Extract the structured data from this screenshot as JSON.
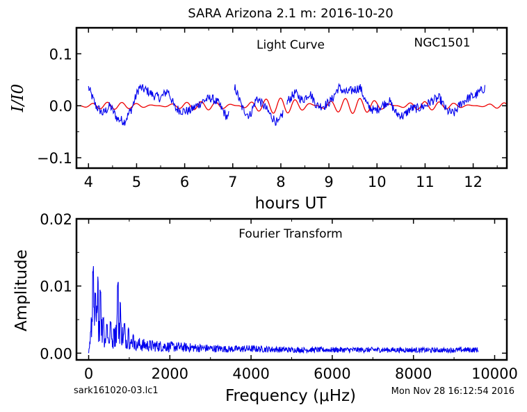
{
  "header": {
    "title": "SARA Arizona 2.1 m:  2016-10-20"
  },
  "footer": {
    "filename": "sark161020-03.lc1",
    "timestamp": "Mon Nov 28 16:12:54 2016"
  },
  "colors": {
    "data": "#0000ee",
    "model": "#ee0000",
    "axes": "#000000"
  },
  "chart_data": [
    {
      "type": "line",
      "title": "Light Curve",
      "object_label": "NGC1501",
      "xlabel": "hours UT",
      "ylabel": "I/I0",
      "xlim": [
        3.75,
        12.7
      ],
      "ylim": [
        -0.12,
        0.15
      ],
      "xticks": [
        "4",
        "5",
        "6",
        "7",
        "8",
        "9",
        "10",
        "11",
        "12"
      ],
      "xtick_values": [
        4,
        5,
        6,
        7,
        8,
        9,
        10,
        11,
        12
      ],
      "yticks": [
        "0.1",
        "0.0",
        "−0.1"
      ],
      "ytick_values": [
        0.1,
        0.0,
        -0.1
      ],
      "grid": false,
      "series": [
        {
          "color": "#0000ee",
          "x_start": 4.0,
          "x_end": 12.25,
          "gaps": [
            [
              6.92,
              7.03
            ],
            [
              8.05,
              8.12
            ]
          ],
          "anchors": [
            [
              4.0,
              0.035
            ],
            [
              4.15,
              0.0
            ],
            [
              4.3,
              -0.015
            ],
            [
              4.45,
              0.0
            ],
            [
              4.6,
              -0.025
            ],
            [
              4.75,
              -0.03
            ],
            [
              4.9,
              -0.005
            ],
            [
              5.05,
              0.035
            ],
            [
              5.2,
              0.03
            ],
            [
              5.35,
              0.02
            ],
            [
              5.5,
              0.015
            ],
            [
              5.65,
              0.03
            ],
            [
              5.8,
              -0.005
            ],
            [
              5.95,
              -0.01
            ],
            [
              6.1,
              -0.01
            ],
            [
              6.25,
              0.0
            ],
            [
              6.4,
              0.01
            ],
            [
              6.55,
              0.015
            ],
            [
              6.7,
              0.005
            ],
            [
              6.9,
              -0.025
            ],
            [
              7.05,
              0.035
            ],
            [
              7.2,
              -0.005
            ],
            [
              7.35,
              -0.02
            ],
            [
              7.5,
              0.015
            ],
            [
              7.65,
              0.0
            ],
            [
              7.8,
              -0.02
            ],
            [
              7.95,
              -0.035
            ],
            [
              8.15,
              0.01
            ],
            [
              8.3,
              0.025
            ],
            [
              8.45,
              0.01
            ],
            [
              8.6,
              0.025
            ],
            [
              8.75,
              0.0
            ],
            [
              8.9,
              0.0
            ],
            [
              9.05,
              0.01
            ],
            [
              9.2,
              0.035
            ],
            [
              9.35,
              0.025
            ],
            [
              9.5,
              0.03
            ],
            [
              9.65,
              0.035
            ],
            [
              9.8,
              0.0
            ],
            [
              9.95,
              -0.01
            ],
            [
              10.1,
              0.0
            ],
            [
              10.25,
              0.01
            ],
            [
              10.4,
              -0.015
            ],
            [
              10.55,
              -0.02
            ],
            [
              10.7,
              -0.005
            ],
            [
              10.85,
              -0.005
            ],
            [
              11.0,
              0.0
            ],
            [
              11.15,
              0.01
            ],
            [
              11.3,
              0.015
            ],
            [
              11.45,
              -0.01
            ],
            [
              11.6,
              -0.015
            ],
            [
              11.75,
              0.005
            ],
            [
              11.9,
              0.015
            ],
            [
              12.05,
              0.02
            ],
            [
              12.25,
              0.035
            ]
          ],
          "noise_amplitude": 0.009
        },
        {
          "color": "#ee0000",
          "x_start": 3.75,
          "x_end": 12.7,
          "model_periods_hours": [
            0.33,
            0.275
          ],
          "model_amplitudes": [
            0.008,
            0.0065
          ]
        }
      ]
    },
    {
      "type": "line",
      "title": "Fourier Transform",
      "xlabel": "Frequency (μHz)",
      "ylabel": "Amplitude",
      "xlim": [
        -300,
        10300
      ],
      "ylim": [
        -0.001,
        0.02
      ],
      "xticks": [
        "0",
        "2000",
        "4000",
        "6000",
        "8000",
        "10000"
      ],
      "xtick_values": [
        0,
        2000,
        4000,
        6000,
        8000,
        10000
      ],
      "yticks": [
        "0.02",
        "0.01",
        "0.00"
      ],
      "ytick_values": [
        0.02,
        0.01,
        0.0
      ],
      "grid": false,
      "series": [
        {
          "color": "#0000ee",
          "x_start": 0,
          "x_end": 9600,
          "peaks": [
            [
              110,
              0.013
            ],
            [
              160,
              0.009
            ],
            [
              230,
              0.0115
            ],
            [
              290,
              0.0098
            ],
            [
              360,
              0.0055
            ],
            [
              450,
              0.0045
            ],
            [
              540,
              0.0048
            ],
            [
              620,
              0.0037
            ],
            [
              720,
              0.0107
            ],
            [
              780,
              0.0078
            ],
            [
              880,
              0.0045
            ],
            [
              980,
              0.0038
            ],
            [
              1100,
              0.0028
            ],
            [
              1300,
              0.0022
            ],
            [
              1550,
              0.002
            ],
            [
              1900,
              0.0018
            ],
            [
              2300,
              0.0016
            ],
            [
              2700,
              0.0014
            ],
            [
              3500,
              0.0011
            ],
            [
              3900,
              0.0012
            ],
            [
              5000,
              0.0009
            ],
            [
              6200,
              0.0009
            ],
            [
              7100,
              0.0009
            ],
            [
              8800,
              0.0008
            ],
            [
              9300,
              0.0009
            ]
          ]
        }
      ]
    }
  ]
}
